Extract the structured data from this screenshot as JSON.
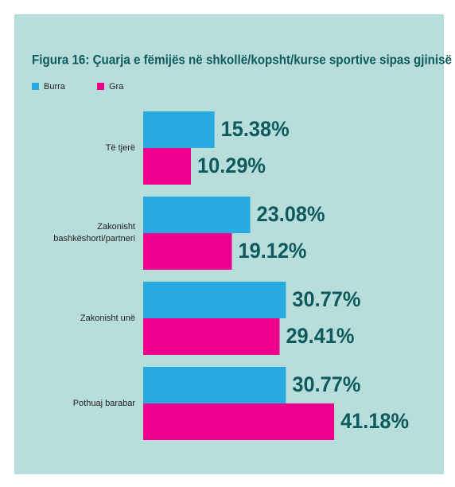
{
  "chart_data": {
    "type": "barh",
    "title": "Figura 16: Çuarja e fëmijës në shkollë/kopsht/kurse sportive sipas gjinisë",
    "categories": [
      "Të tjerë",
      "Zakonisht bashkëshorti/partneri",
      "Zakonisht unë",
      "Pothuaj barabar"
    ],
    "series": [
      {
        "name": "Burra",
        "color": "#29abe2",
        "values": [
          15.38,
          23.08,
          30.77,
          30.77
        ],
        "value_labels": [
          "15.38%",
          "23.08%",
          "30.77%",
          "30.77%"
        ]
      },
      {
        "name": "Gra",
        "color": "#ec008c",
        "values": [
          10.29,
          19.12,
          29.41,
          41.18
        ],
        "value_labels": [
          "10.29%",
          "19.12%",
          "29.41%",
          "41.18%"
        ]
      }
    ]
  }
}
